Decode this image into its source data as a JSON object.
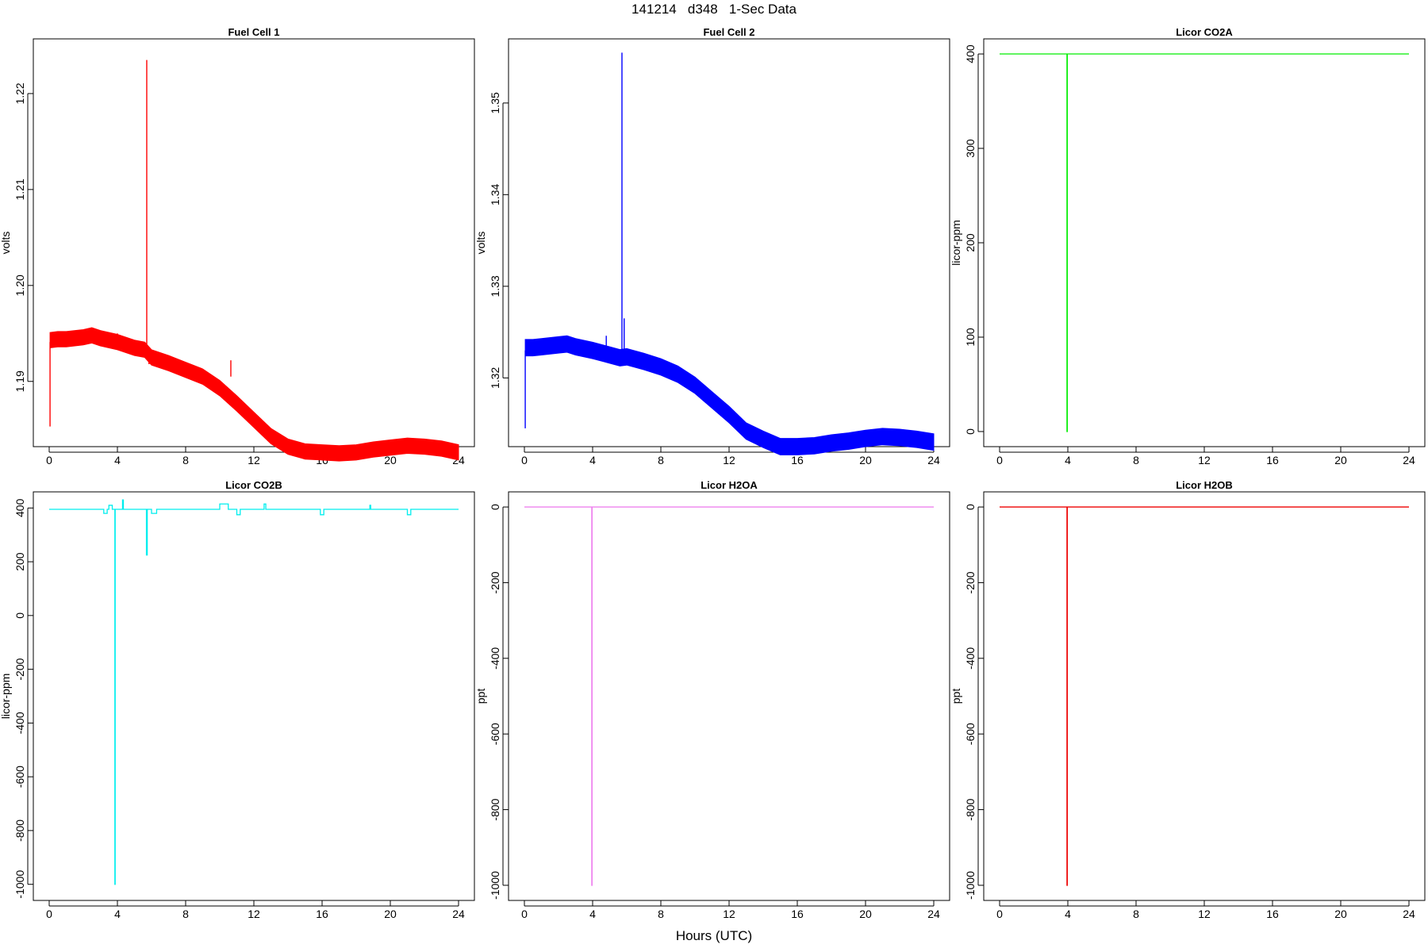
{
  "title": "141214   d348   1-Sec Data",
  "x_axis_title": "Hours (UTC)",
  "chart_data": [
    {
      "type": "line",
      "title": "Fuel Cell 1",
      "ylabel": "volts",
      "color": "#ff0000",
      "xlim": [
        0,
        24
      ],
      "ylim": [
        1.1832,
        1.2257
      ],
      "xticks": [
        0,
        4,
        8,
        12,
        16,
        20,
        24
      ],
      "yticks": [
        1.19,
        1.2,
        1.21,
        1.22
      ],
      "ytick_labels": [
        "1.19",
        "1.20",
        "1.21",
        "1.22"
      ],
      "band": {
        "x": [
          0.05,
          0.5,
          1,
          2,
          2.5,
          3,
          4,
          5,
          5.6,
          6,
          7,
          8,
          9,
          10,
          11,
          12,
          13,
          14,
          15,
          16,
          17,
          18,
          19,
          20,
          21,
          22,
          23,
          24
        ],
        "y": [
          1.1943,
          1.1944,
          1.1944,
          1.1946,
          1.1948,
          1.1945,
          1.1941,
          1.1935,
          1.1933,
          1.1925,
          1.1919,
          1.1912,
          1.1905,
          1.1893,
          1.1877,
          1.186,
          1.1843,
          1.1832,
          1.1827,
          1.1826,
          1.1825,
          1.1826,
          1.1829,
          1.1831,
          1.1833,
          1.1832,
          1.183,
          1.1826
        ]
      },
      "band_width": 0.0008,
      "spikes": [
        {
          "x": 0.05,
          "from": 1.1941,
          "to": 1.1853
        },
        {
          "x": 5.72,
          "from": 1.1935,
          "to": 1.2235
        },
        {
          "x": 5.85,
          "from": 1.193,
          "to": 1.1918
        },
        {
          "x": 4.0,
          "from": 1.1945,
          "to": 1.195
        },
        {
          "x": 10.65,
          "from": 1.1905,
          "to": 1.1922
        }
      ]
    },
    {
      "type": "line",
      "title": "Fuel Cell 2",
      "ylabel": "volts",
      "color": "#0000ff",
      "xlim": [
        0,
        24
      ],
      "ylim": [
        1.3125,
        1.357
      ],
      "xticks": [
        0,
        4,
        8,
        12,
        16,
        20,
        24
      ],
      "yticks": [
        1.32,
        1.33,
        1.34,
        1.35
      ],
      "ytick_labels": [
        "1.32",
        "1.33",
        "1.34",
        "1.35"
      ],
      "band": {
        "x": [
          0.05,
          0.5,
          1,
          2,
          2.5,
          3,
          4,
          5,
          5.6,
          6,
          7,
          8,
          9,
          10,
          11,
          12,
          13,
          14,
          15,
          16,
          17,
          18,
          19,
          20,
          21,
          22,
          23,
          24
        ],
        "y": [
          1.3233,
          1.3233,
          1.3234,
          1.3236,
          1.3237,
          1.3234,
          1.323,
          1.3225,
          1.3222,
          1.3223,
          1.3218,
          1.3212,
          1.3204,
          1.3192,
          1.3176,
          1.316,
          1.3142,
          1.3133,
          1.3125,
          1.3125,
          1.3126,
          1.3129,
          1.3131,
          1.3134,
          1.3136,
          1.3135,
          1.3133,
          1.313
        ]
      },
      "band_width": 0.0009,
      "spikes": [
        {
          "x": 0.05,
          "from": 1.323,
          "to": 1.3145
        },
        {
          "x": 5.72,
          "from": 1.3222,
          "to": 1.3555
        },
        {
          "x": 5.85,
          "from": 1.3222,
          "to": 1.3265
        },
        {
          "x": 4.8,
          "from": 1.3228,
          "to": 1.3246
        }
      ]
    },
    {
      "type": "line",
      "title": "Licor CO2A",
      "ylabel": "licor-ppm",
      "color": "#00ee00",
      "xlim": [
        0,
        24
      ],
      "ylim": [
        -16,
        416
      ],
      "xticks": [
        0,
        4,
        8,
        12,
        16,
        20,
        24
      ],
      "yticks": [
        0,
        100,
        200,
        300,
        400
      ],
      "ytick_labels": [
        "0",
        "100",
        "200",
        "300",
        "400"
      ],
      "x": [
        0,
        3.95,
        3.95,
        3.97,
        3.97,
        24
      ],
      "y": [
        400,
        400,
        0,
        0,
        400,
        400
      ]
    },
    {
      "type": "line",
      "title": "Licor CO2B",
      "ylabel": "licor-ppm",
      "color": "#00eeee",
      "xlim": [
        0,
        24
      ],
      "ylim": [
        -1060,
        460
      ],
      "xticks": [
        0,
        4,
        8,
        12,
        16,
        20,
        24
      ],
      "yticks": [
        -1000,
        -800,
        -600,
        -400,
        -200,
        0,
        200,
        400
      ],
      "ytick_labels": [
        "-1000",
        "-800",
        "-600",
        "-400",
        "-200",
        "0",
        "200",
        "400"
      ],
      "x": [
        0,
        3.2,
        3.2,
        3.4,
        3.4,
        3.5,
        3.5,
        3.7,
        3.7,
        3.85,
        3.85,
        3.87,
        3.87,
        4.3,
        4.3,
        4.35,
        4.35,
        5.7,
        5.7,
        5.75,
        5.75,
        6.0,
        6.0,
        6.3,
        6.3,
        10.0,
        10.0,
        10.5,
        10.5,
        11.0,
        11.0,
        11.2,
        11.2,
        12.6,
        12.6,
        12.7,
        12.7,
        15.9,
        15.9,
        16.1,
        16.1,
        18.8,
        18.8,
        18.85,
        18.85,
        21.0,
        21.0,
        21.2,
        21.2,
        24
      ],
      "y": [
        395,
        395,
        380,
        380,
        395,
        395,
        410,
        410,
        395,
        395,
        -1000,
        -1000,
        395,
        395,
        430,
        430,
        395,
        395,
        225,
        225,
        395,
        395,
        380,
        380,
        395,
        395,
        415,
        415,
        395,
        395,
        375,
        375,
        395,
        395,
        415,
        415,
        395,
        395,
        375,
        375,
        395,
        395,
        410,
        410,
        395,
        395,
        375,
        375,
        395,
        395
      ]
    },
    {
      "type": "line",
      "title": "Licor H2OA",
      "ylabel": "ppt",
      "color": "#ee82ee",
      "xlim": [
        0,
        24
      ],
      "ylim": [
        -1040,
        40
      ],
      "xticks": [
        0,
        4,
        8,
        12,
        16,
        20,
        24
      ],
      "yticks": [
        -1000,
        -800,
        -600,
        -400,
        -200,
        0
      ],
      "ytick_labels": [
        "-1000",
        "-800",
        "-600",
        "-400",
        "-200",
        "0"
      ],
      "x": [
        0,
        3.95,
        3.95,
        3.97,
        3.97,
        24
      ],
      "y": [
        0,
        0,
        -1000,
        -1000,
        0,
        0
      ]
    },
    {
      "type": "line",
      "title": "Licor H2OB",
      "ylabel": "ppt",
      "color": "#ee0000",
      "xlim": [
        0,
        24
      ],
      "ylim": [
        -1040,
        40
      ],
      "xticks": [
        0,
        4,
        8,
        12,
        16,
        20,
        24
      ],
      "yticks": [
        -1000,
        -800,
        -600,
        -400,
        -200,
        0
      ],
      "ytick_labels": [
        "-1000",
        "-800",
        "-600",
        "-400",
        "-200",
        "0"
      ],
      "x": [
        0,
        3.95,
        3.95,
        3.97,
        3.97,
        24
      ],
      "y": [
        0,
        0,
        -1000,
        -1000,
        0,
        0
      ]
    }
  ]
}
